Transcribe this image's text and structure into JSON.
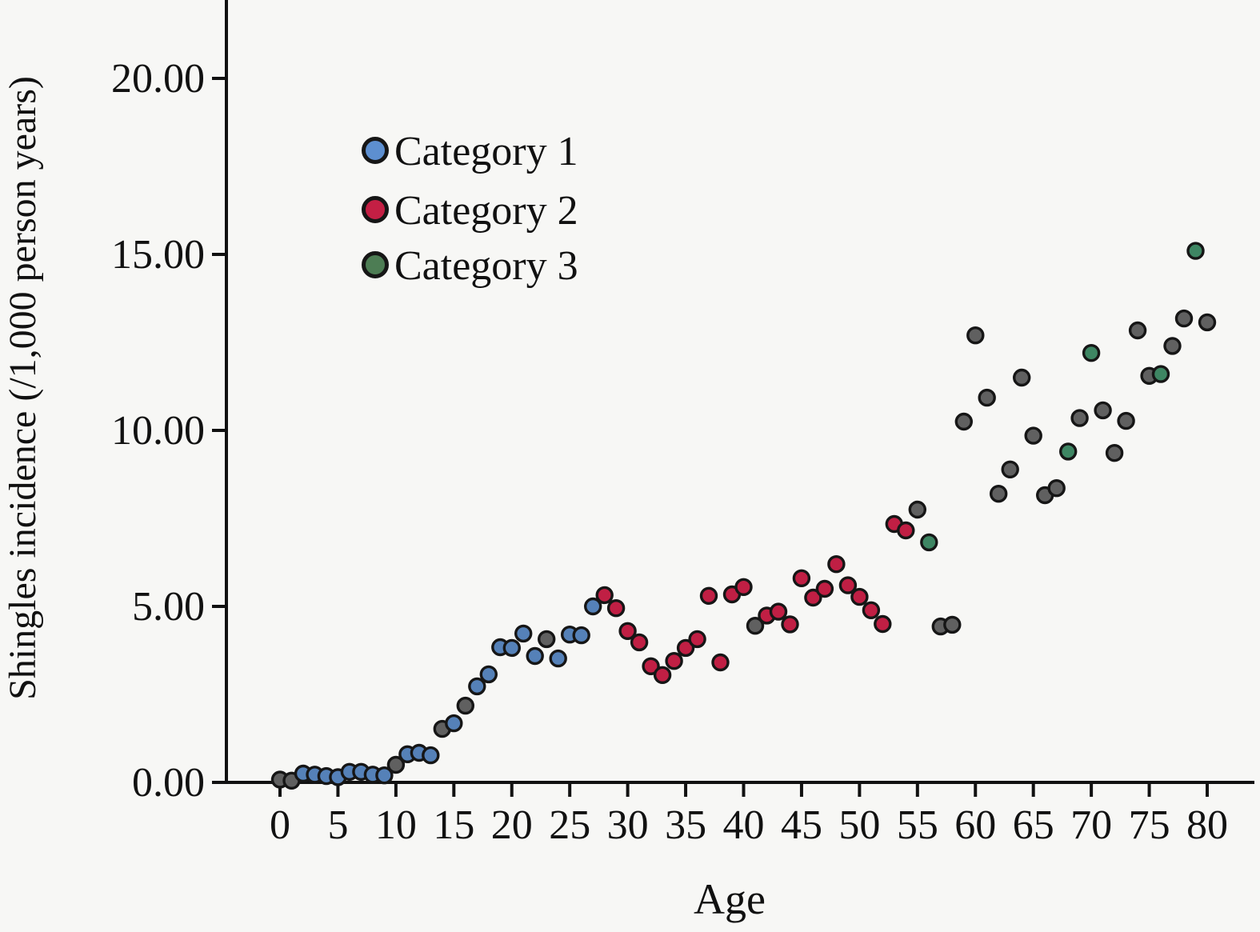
{
  "figure": {
    "background": "#f7f7f5",
    "axis_color": "#111111",
    "marker_outline_color": "#161616"
  },
  "chart_data": {
    "type": "scatter",
    "title": "",
    "xlabel": "Age",
    "ylabel": "Shingles incidence (/1,000 person years)",
    "x_ticks": [
      0,
      5,
      10,
      15,
      20,
      25,
      30,
      35,
      40,
      45,
      50,
      55,
      60,
      65,
      70,
      75,
      80
    ],
    "y_ticks": [
      0,
      5,
      10,
      15,
      20
    ],
    "y_tick_labels": [
      "0.00",
      "5.00",
      "10.00",
      "15.00",
      "20.00"
    ],
    "xlim": [
      -4.6,
      84.5
    ],
    "ylim": [
      0,
      22.2
    ],
    "grid": false,
    "legend": {
      "position": "upper-left-inside",
      "entries": [
        {
          "label": "Category 1",
          "color": "#5d8fd0"
        },
        {
          "label": "Category 2",
          "color": "#c41f44"
        },
        {
          "label": "Category 3",
          "color": "#4d7d54"
        }
      ]
    },
    "series": [
      {
        "name": "Category 1",
        "color": "#5581b8",
        "points": [
          [
            2,
            0.25
          ],
          [
            3,
            0.22
          ],
          [
            4,
            0.18
          ],
          [
            5,
            0.15
          ],
          [
            6,
            0.3
          ],
          [
            7,
            0.3
          ],
          [
            8,
            0.22
          ],
          [
            9,
            0.2
          ],
          [
            11,
            0.8
          ],
          [
            12,
            0.84
          ],
          [
            13,
            0.77
          ],
          [
            15,
            1.68
          ],
          [
            17,
            2.73
          ],
          [
            18,
            3.07
          ],
          [
            19,
            3.84
          ],
          [
            20,
            3.82
          ],
          [
            21,
            4.23
          ],
          [
            22,
            3.59
          ],
          [
            24,
            3.52
          ],
          [
            25,
            4.2
          ],
          [
            26,
            4.18
          ],
          [
            27,
            5.0
          ]
        ]
      },
      {
        "name": "Category 2",
        "color": "#c01f44",
        "points": [
          [
            28,
            5.32
          ],
          [
            29,
            4.95
          ],
          [
            30,
            4.3
          ],
          [
            31,
            3.98
          ],
          [
            32,
            3.3
          ],
          [
            33,
            3.05
          ],
          [
            34,
            3.45
          ],
          [
            35,
            3.82
          ],
          [
            36,
            4.07
          ],
          [
            37,
            5.3
          ],
          [
            38,
            3.41
          ],
          [
            39,
            5.34
          ],
          [
            40,
            5.55
          ],
          [
            42,
            4.74
          ],
          [
            43,
            4.85
          ],
          [
            44,
            4.49
          ],
          [
            45,
            5.8
          ],
          [
            46,
            5.25
          ],
          [
            47,
            5.5
          ],
          [
            48,
            6.2
          ],
          [
            49,
            5.6
          ],
          [
            50,
            5.27
          ],
          [
            51,
            4.89
          ],
          [
            52,
            4.5
          ],
          [
            53,
            7.34
          ],
          [
            54,
            7.16
          ]
        ]
      },
      {
        "name": "Category 3",
        "color": "#3e8663",
        "points": [
          [
            56,
            6.82
          ],
          [
            68,
            9.4
          ],
          [
            70,
            12.2
          ],
          [
            76,
            11.6
          ],
          [
            79,
            15.1
          ]
        ]
      },
      {
        "name": "unlabeled-gray",
        "color": "#606060",
        "points": [
          [
            0,
            0.08
          ],
          [
            1,
            0.05
          ],
          [
            10,
            0.5
          ],
          [
            14,
            1.52
          ],
          [
            16,
            2.18
          ],
          [
            23,
            4.07
          ],
          [
            41,
            4.45
          ],
          [
            55,
            7.75
          ],
          [
            57,
            4.43
          ],
          [
            58,
            4.48
          ],
          [
            59,
            10.25
          ],
          [
            60,
            12.7
          ],
          [
            61,
            10.93
          ],
          [
            62,
            8.2
          ],
          [
            63,
            8.89
          ],
          [
            64,
            11.5
          ],
          [
            65,
            9.85
          ],
          [
            66,
            8.16
          ],
          [
            67,
            8.36
          ],
          [
            69,
            10.35
          ],
          [
            71,
            10.57
          ],
          [
            72,
            9.36
          ],
          [
            73,
            10.27
          ],
          [
            74,
            12.84
          ],
          [
            75,
            11.55
          ],
          [
            77,
            12.4
          ],
          [
            78,
            13.18
          ],
          [
            80,
            13.07
          ]
        ]
      }
    ]
  }
}
